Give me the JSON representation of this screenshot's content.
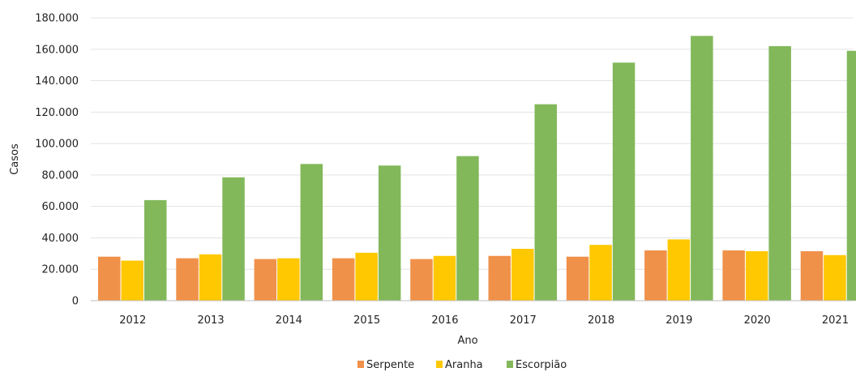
{
  "chart_data": {
    "type": "bar",
    "title": "",
    "xlabel": "Ano",
    "ylabel": "Casos",
    "categories": [
      "2012",
      "2013",
      "2014",
      "2015",
      "2016",
      "2017",
      "2018",
      "2019",
      "2020",
      "2021"
    ],
    "ylim": [
      0,
      180000
    ],
    "yticks": [
      "0",
      "20.000",
      "40.000",
      "60.000",
      "80.000",
      "100.000",
      "120.000",
      "140.000",
      "160.000",
      "180.000"
    ],
    "grid": true,
    "legend_position": "bottom",
    "series": [
      {
        "name": "Serpente",
        "color": "#F0914A",
        "values": [
          28000,
          27000,
          26500,
          27000,
          26500,
          28500,
          28000,
          32000,
          32000,
          31500
        ]
      },
      {
        "name": "Aranha",
        "color": "#FFC800",
        "values": [
          25500,
          29500,
          27000,
          30500,
          28500,
          33000,
          35500,
          39000,
          31500,
          29000
        ]
      },
      {
        "name": "Escorpião",
        "color": "#82B85A",
        "values": [
          64000,
          78500,
          87000,
          86000,
          92000,
          125000,
          151500,
          168500,
          162000,
          159000
        ]
      }
    ]
  }
}
